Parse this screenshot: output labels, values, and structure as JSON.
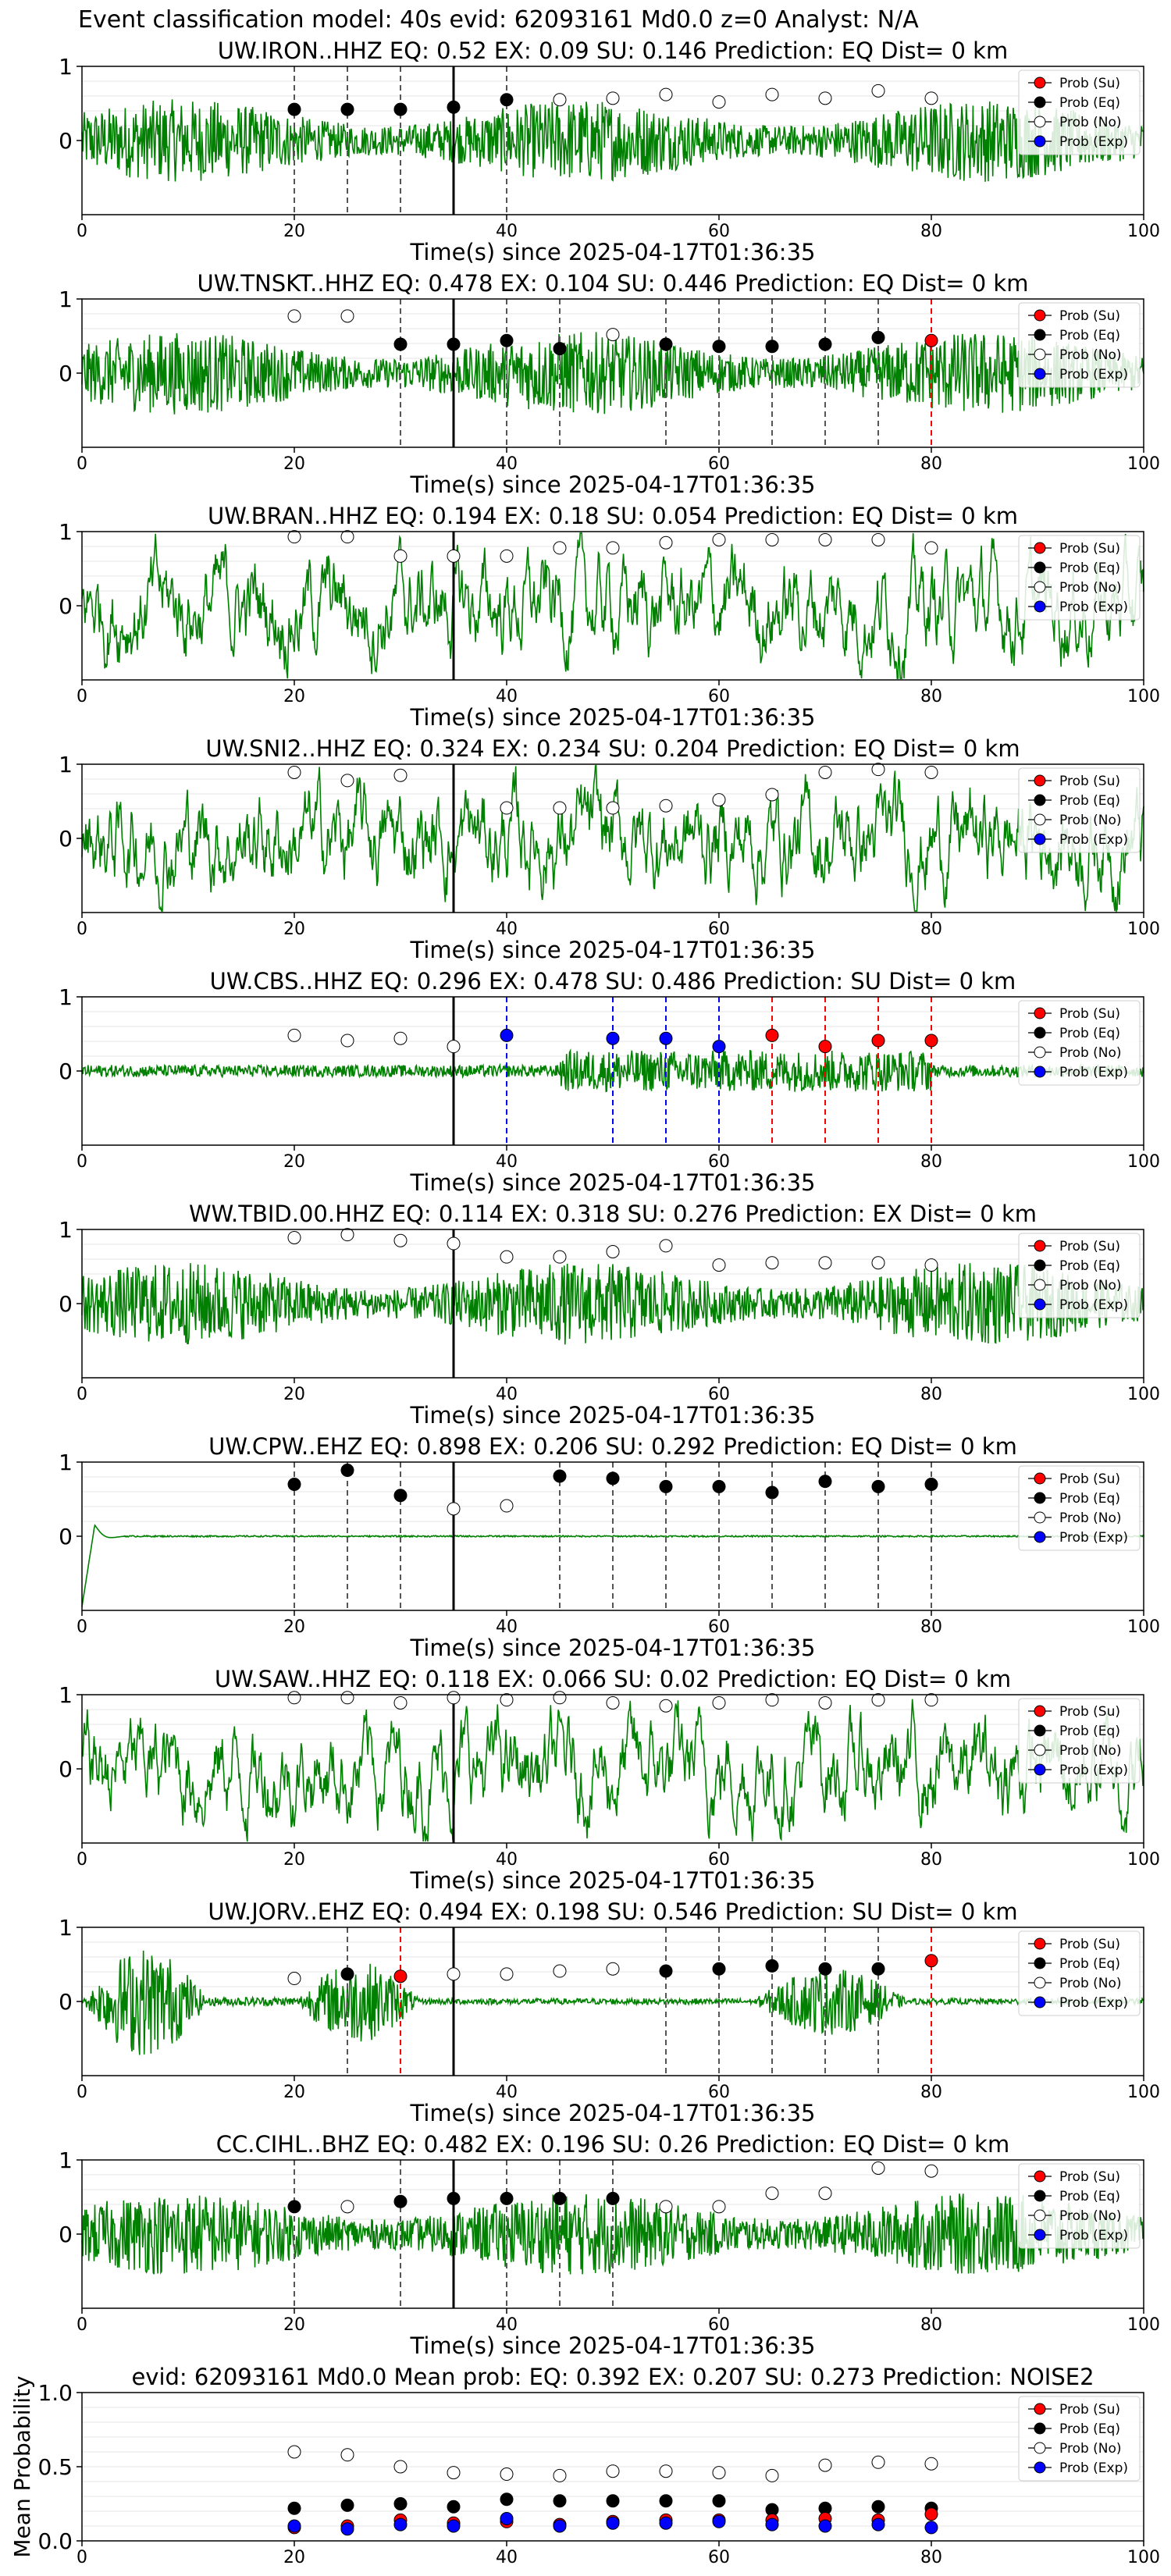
{
  "suptitle": "Event classification model: 40s evid: 62093161 Md0.0 z=0 Analyst: N/A",
  "xlabel": "Time(s) since 2025-04-17T01:36:35",
  "legend": [
    "Prob (Su)",
    "Prob (Eq)",
    "Prob (No)",
    "Prob (Exp)"
  ],
  "colors": {
    "su": "#ff0000",
    "eq": "#000000",
    "no": "#ffffff",
    "exp": "#0000ff",
    "trace": "#008000"
  },
  "chart_data": [
    {
      "type": "line",
      "title": "UW.IRON..HHZ   EQ: 0.52  EX: 0.09  SU: 0.146   Prediction: EQ    Dist= 0 km",
      "trace_style": "high",
      "xlim": [
        0,
        100
      ],
      "yticks": [
        0,
        1
      ],
      "x": [
        20,
        25,
        30,
        35,
        40,
        45,
        50,
        55,
        60,
        65,
        70,
        75,
        80
      ],
      "classes": [
        "eq",
        "eq",
        "eq",
        "eq",
        "eq",
        "no",
        "no",
        "no",
        "no",
        "no",
        "no",
        "no",
        "no"
      ],
      "values": [
        0.42,
        0.42,
        0.42,
        0.45,
        0.55,
        0.55,
        0.57,
        0.62,
        0.52,
        0.62,
        0.57,
        0.67,
        0.57
      ],
      "vlines": [
        20,
        25,
        30,
        40
      ]
    },
    {
      "type": "line",
      "title": "UW.TNSKT..HHZ   EQ: 0.478  EX: 0.104  SU: 0.446   Prediction: EQ    Dist= 0 km",
      "trace_style": "high",
      "xlim": [
        0,
        100
      ],
      "yticks": [
        0,
        1
      ],
      "x": [
        20,
        25,
        30,
        35,
        40,
        45,
        50,
        55,
        60,
        65,
        70,
        75,
        80
      ],
      "classes": [
        "no",
        "no",
        "eq",
        "eq",
        "eq",
        "eq",
        "no",
        "eq",
        "eq",
        "eq",
        "eq",
        "eq",
        "su"
      ],
      "values": [
        0.77,
        0.77,
        0.39,
        0.39,
        0.44,
        0.33,
        0.52,
        0.39,
        0.36,
        0.36,
        0.39,
        0.48,
        0.44
      ],
      "vlines": [
        30,
        40,
        45,
        55,
        60,
        65,
        70,
        75,
        80
      ]
    },
    {
      "type": "line",
      "title": "UW.BRAN..HHZ   EQ: 0.194  EX: 0.18  SU: 0.054   Prediction: EQ    Dist= 0 km",
      "trace_style": "low",
      "xlim": [
        0,
        100
      ],
      "yticks": [
        0,
        1
      ],
      "x": [
        20,
        25,
        30,
        35,
        40,
        45,
        50,
        55,
        60,
        65,
        70,
        75,
        80
      ],
      "classes": [
        "no",
        "no",
        "no",
        "no",
        "no",
        "no",
        "no",
        "no",
        "no",
        "no",
        "no",
        "no",
        "no"
      ],
      "values": [
        0.93,
        0.93,
        0.67,
        0.67,
        0.67,
        0.78,
        0.78,
        0.85,
        0.89,
        0.89,
        0.89,
        0.89,
        0.78
      ],
      "vlines": []
    },
    {
      "type": "line",
      "title": "UW.SNI2..HHZ   EQ: 0.324  EX: 0.234  SU: 0.204   Prediction: EQ    Dist= 0 km",
      "trace_style": "low",
      "xlim": [
        0,
        100
      ],
      "yticks": [
        0,
        1
      ],
      "x": [
        20,
        25,
        30,
        40,
        45,
        50,
        55,
        60,
        65,
        70,
        75,
        80
      ],
      "classes": [
        "no",
        "no",
        "no",
        "no",
        "no",
        "no",
        "no",
        "no",
        "no",
        "no",
        "no",
        "no"
      ],
      "values": [
        0.89,
        0.78,
        0.85,
        0.41,
        0.41,
        0.41,
        0.44,
        0.52,
        0.59,
        0.89,
        0.93,
        0.89
      ],
      "vlines": []
    },
    {
      "type": "line",
      "title": "UW.CBS..HHZ   EQ: 0.296  EX: 0.478  SU: 0.486   Prediction: SU    Dist= 0 km",
      "trace_style": "quiet",
      "xlim": [
        0,
        100
      ],
      "yticks": [
        0,
        1
      ],
      "x": [
        20,
        25,
        30,
        35,
        40,
        50,
        55,
        60,
        65,
        70,
        75,
        80
      ],
      "classes": [
        "no",
        "no",
        "no",
        "no",
        "exp",
        "exp",
        "exp",
        "exp",
        "su",
        "su",
        "su",
        "su"
      ],
      "values": [
        0.48,
        0.41,
        0.44,
        0.33,
        0.48,
        0.44,
        0.44,
        0.33,
        0.48,
        0.33,
        0.41,
        0.41
      ],
      "vlines": [
        40,
        50,
        55,
        60,
        65,
        70,
        75,
        80
      ]
    },
    {
      "type": "line",
      "title": "WW.TBID.00.HHZ   EQ: 0.114  EX: 0.318  SU: 0.276   Prediction: EX    Dist= 0 km",
      "trace_style": "high",
      "xlim": [
        0,
        100
      ],
      "yticks": [
        0,
        1
      ],
      "x": [
        20,
        25,
        30,
        35,
        40,
        45,
        50,
        55,
        60,
        65,
        70,
        75,
        80
      ],
      "classes": [
        "no",
        "no",
        "no",
        "no",
        "no",
        "no",
        "no",
        "no",
        "no",
        "no",
        "no",
        "no",
        "no"
      ],
      "values": [
        0.89,
        0.93,
        0.85,
        0.81,
        0.63,
        0.63,
        0.7,
        0.78,
        0.52,
        0.55,
        0.55,
        0.55,
        0.52
      ],
      "vlines": []
    },
    {
      "type": "line",
      "title": "UW.CPW..EHZ   EQ: 0.898  EX: 0.206  SU: 0.292   Prediction: EQ    Dist= 0 km",
      "trace_style": "flat",
      "xlim": [
        0,
        100
      ],
      "yticks": [
        0,
        1
      ],
      "x": [
        20,
        25,
        30,
        35,
        40,
        45,
        50,
        55,
        60,
        65,
        70,
        75,
        80
      ],
      "classes": [
        "eq",
        "eq",
        "eq",
        "no",
        "no",
        "eq",
        "eq",
        "eq",
        "eq",
        "eq",
        "eq",
        "eq",
        "eq"
      ],
      "values": [
        0.7,
        0.89,
        0.55,
        0.37,
        0.41,
        0.81,
        0.78,
        0.67,
        0.67,
        0.59,
        0.74,
        0.67,
        0.7
      ],
      "vlines": [
        20,
        25,
        30,
        45,
        50,
        55,
        60,
        65,
        70,
        75,
        80
      ]
    },
    {
      "type": "line",
      "title": "UW.SAW..HHZ   EQ: 0.118  EX: 0.066  SU: 0.02   Prediction: EQ    Dist= 0 km",
      "trace_style": "low",
      "xlim": [
        0,
        100
      ],
      "yticks": [
        0,
        1
      ],
      "x": [
        20,
        25,
        30,
        35,
        40,
        45,
        50,
        55,
        60,
        65,
        70,
        75,
        80
      ],
      "classes": [
        "no",
        "no",
        "no",
        "no",
        "no",
        "no",
        "no",
        "no",
        "no",
        "no",
        "no",
        "no",
        "no"
      ],
      "values": [
        0.96,
        0.96,
        0.89,
        0.96,
        0.93,
        0.96,
        0.89,
        0.85,
        0.89,
        0.93,
        0.89,
        0.93,
        0.93
      ],
      "vlines": []
    },
    {
      "type": "line",
      "title": "UW.JORV..EHZ   EQ: 0.494  EX: 0.198  SU: 0.546   Prediction: SU    Dist= 0 km",
      "trace_style": "burst",
      "xlim": [
        0,
        100
      ],
      "yticks": [
        0,
        1
      ],
      "x": [
        20,
        25,
        30,
        35,
        40,
        45,
        50,
        55,
        60,
        65,
        70,
        75,
        80
      ],
      "classes": [
        "no",
        "eq",
        "su",
        "no",
        "no",
        "no",
        "no",
        "eq",
        "eq",
        "eq",
        "eq",
        "eq",
        "su"
      ],
      "values": [
        0.31,
        0.37,
        0.34,
        0.37,
        0.37,
        0.41,
        0.44,
        0.41,
        0.44,
        0.48,
        0.44,
        0.44,
        0.55
      ],
      "vlines": [
        25,
        30,
        55,
        60,
        65,
        70,
        75,
        80
      ]
    },
    {
      "type": "line",
      "title": "CC.CIHL..BHZ   EQ: 0.482  EX: 0.196  SU: 0.26   Prediction: EQ    Dist= 0 km",
      "trace_style": "high",
      "xlim": [
        0,
        100
      ],
      "yticks": [
        0,
        1
      ],
      "x": [
        20,
        25,
        30,
        35,
        40,
        45,
        50,
        55,
        60,
        65,
        70,
        75,
        80
      ],
      "classes": [
        "eq",
        "no",
        "eq",
        "eq",
        "eq",
        "eq",
        "eq",
        "no",
        "no",
        "no",
        "no",
        "no",
        "no"
      ],
      "values": [
        0.37,
        0.37,
        0.44,
        0.48,
        0.48,
        0.48,
        0.48,
        0.37,
        0.37,
        0.55,
        0.55,
        0.89,
        0.85
      ],
      "vlines": [
        20,
        30,
        40,
        45,
        50
      ]
    },
    {
      "type": "scatter",
      "title": "evid: 62093161   Md0.0    Mean prob:    EQ: 0.392  EX: 0.207  SU: 0.273   Prediction: NOISE2",
      "ylabel": "Mean Probability",
      "xlim": [
        0,
        100
      ],
      "ylim": [
        0,
        1
      ],
      "yticks": [
        "0.0",
        "0.5",
        "1.0"
      ],
      "xticks": [
        "0",
        "20",
        "40",
        "60",
        "80",
        "100"
      ],
      "x": [
        20,
        25,
        30,
        35,
        40,
        45,
        50,
        55,
        60,
        65,
        70,
        75,
        80
      ],
      "series": [
        {
          "name": "Prob (No)",
          "class": "no",
          "values": [
            0.6,
            0.58,
            0.5,
            0.46,
            0.45,
            0.44,
            0.47,
            0.47,
            0.46,
            0.44,
            0.51,
            0.53,
            0.52
          ]
        },
        {
          "name": "Prob (Eq)",
          "class": "eq",
          "values": [
            0.22,
            0.24,
            0.25,
            0.23,
            0.28,
            0.27,
            0.27,
            0.27,
            0.27,
            0.21,
            0.22,
            0.23,
            0.22
          ]
        },
        {
          "name": "Prob (Su)",
          "class": "su",
          "values": [
            0.09,
            0.1,
            0.14,
            0.12,
            0.13,
            0.11,
            0.13,
            0.14,
            0.14,
            0.14,
            0.15,
            0.14,
            0.18
          ]
        },
        {
          "name": "Prob (Exp)",
          "class": "exp",
          "values": [
            0.1,
            0.08,
            0.11,
            0.1,
            0.15,
            0.1,
            0.12,
            0.12,
            0.13,
            0.11,
            0.1,
            0.11,
            0.09
          ]
        }
      ]
    }
  ]
}
